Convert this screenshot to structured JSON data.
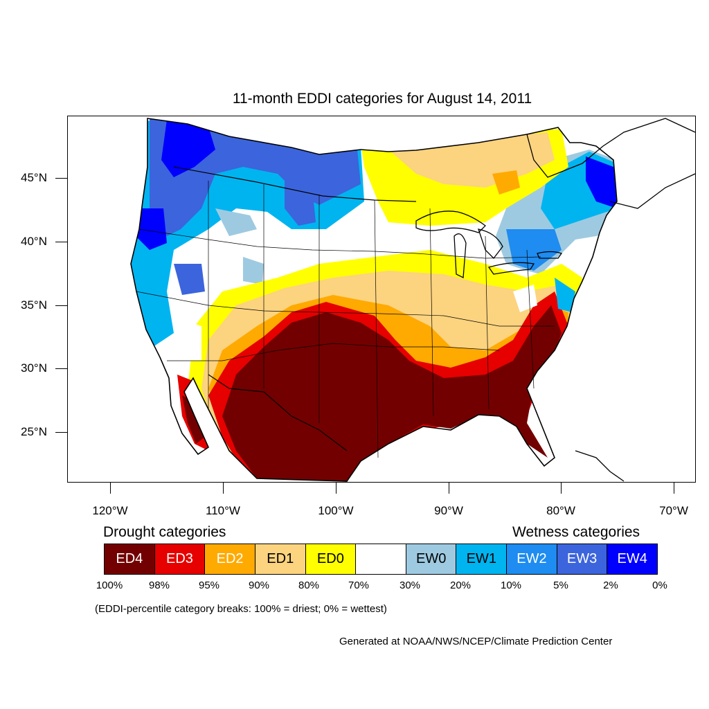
{
  "title": "11-month EDDI categories for August 14, 2011",
  "axes": {
    "lat_labels": [
      "45°N",
      "40°N",
      "35°N",
      "30°N",
      "25°N"
    ],
    "lon_labels": [
      "120°W",
      "110°W",
      "100°W",
      "90°W",
      "80°W",
      "70°W"
    ]
  },
  "legend": {
    "drought_heading": "Drought categories",
    "wetness_heading": "Wetness categories",
    "categories": [
      {
        "label": "ED4",
        "color": "#730000",
        "text_color": "#ffffff"
      },
      {
        "label": "ED3",
        "color": "#e60000",
        "text_color": "#ffffff"
      },
      {
        "label": "ED2",
        "color": "#ffaa00",
        "text_color": "#ffffff"
      },
      {
        "label": "ED1",
        "color": "#fcd37f",
        "text_color": "#000000"
      },
      {
        "label": "ED0",
        "color": "#ffff00",
        "text_color": "#000000"
      },
      {
        "label": "",
        "color": "#ffffff",
        "text_color": "#000000"
      },
      {
        "label": "EW0",
        "color": "#9ecae1",
        "text_color": "#000000"
      },
      {
        "label": "EW1",
        "color": "#00b4f0",
        "text_color": "#000000"
      },
      {
        "label": "EW2",
        "color": "#1e8cf0",
        "text_color": "#ffffff"
      },
      {
        "label": "EW3",
        "color": "#3c64dc",
        "text_color": "#ffffff"
      },
      {
        "label": "EW4",
        "color": "#0000ff",
        "text_color": "#ffffff"
      }
    ],
    "percentiles": [
      "100%",
      "98%",
      "95%",
      "90%",
      "80%",
      "70%",
      "30%",
      "20%",
      "10%",
      "5%",
      "2%",
      "0%"
    ]
  },
  "note": "(EDDI-percentile category breaks: 100% = driest; 0% = wettest)",
  "credit": "Generated at NOAA/NWS/NCEP/Climate Prediction Center"
}
